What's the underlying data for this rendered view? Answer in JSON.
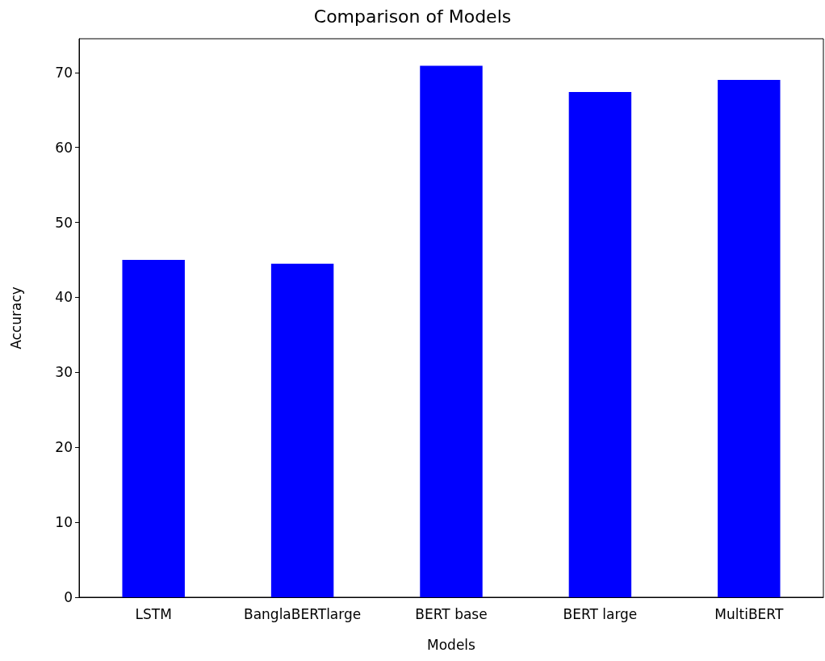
{
  "chart_data": {
    "type": "bar",
    "title": "Comparison of Models",
    "xlabel": "Models",
    "ylabel": "Accuracy",
    "categories": [
      "LSTM",
      "BanglaBERTlarge",
      "BERT base",
      "BERT large",
      "MultiBERT"
    ],
    "values": [
      45,
      44.5,
      70.9,
      67.4,
      69
    ],
    "color": "#0000ff",
    "ylim": [
      0,
      74.5
    ],
    "yticks": [
      0,
      10,
      20,
      30,
      40,
      50,
      60,
      70
    ],
    "grid": false
  }
}
